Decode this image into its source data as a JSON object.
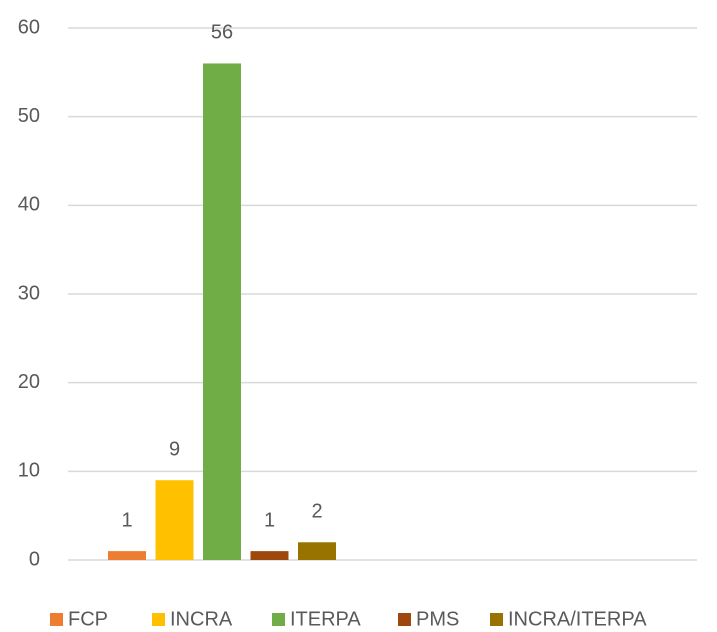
{
  "chart_data": {
    "type": "bar",
    "categories": [
      null
    ],
    "series": [
      {
        "name": "FCP",
        "color": "#ed7d31",
        "values": [
          1
        ]
      },
      {
        "name": "INCRA",
        "color": "#ffc000",
        "values": [
          9
        ]
      },
      {
        "name": "ITERPA",
        "color": "#70ad47",
        "values": [
          56
        ]
      },
      {
        "name": "PMS",
        "color": "#9e480e",
        "values": [
          1
        ]
      },
      {
        "name": "INCRA/ITERPA",
        "color": "#997300",
        "values": [
          2
        ]
      }
    ],
    "ylim": [
      0,
      60
    ],
    "yticks": [
      0,
      10,
      20,
      30,
      40,
      50,
      60
    ],
    "grid": true,
    "legend": "bottom"
  }
}
